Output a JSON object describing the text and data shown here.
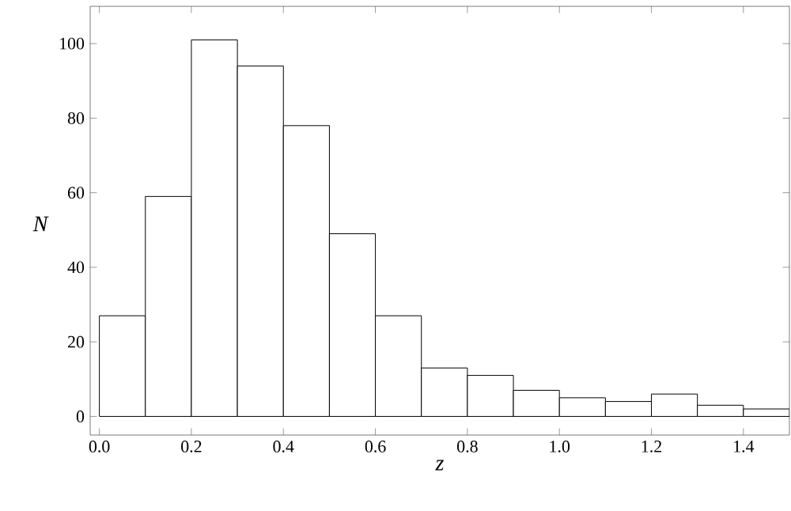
{
  "chart_data": {
    "type": "histogram",
    "xlabel": "z",
    "ylabel": "N",
    "bins": [
      0,
      0.1,
      0.2,
      0.3,
      0.4,
      0.5,
      0.6,
      0.7,
      0.8,
      0.9,
      1.0,
      1.1,
      1.2,
      1.3,
      1.4,
      1.5
    ],
    "values": [
      27,
      59,
      101,
      94,
      78,
      49,
      27,
      13,
      11,
      7,
      5,
      4,
      6,
      3,
      2
    ],
    "color": "#ffffff",
    "xlim": [
      -0.02,
      1.5
    ],
    "ylim": [
      -5,
      110
    ],
    "xticks": [
      {
        "value": 0,
        "label": "0.0"
      },
      {
        "value": 0.2,
        "label": "0.2"
      },
      {
        "value": 0.4,
        "label": "0.4"
      },
      {
        "value": 0.6,
        "label": "0.6"
      },
      {
        "value": 0.8,
        "label": "0.8"
      },
      {
        "value": 1.0,
        "label": "1.0"
      },
      {
        "value": 1.2,
        "label": "1.2"
      },
      {
        "value": 1.4,
        "label": "1.4"
      }
    ],
    "yticks": [
      0,
      20,
      40,
      60,
      80,
      100
    ],
    "grid": false
  }
}
